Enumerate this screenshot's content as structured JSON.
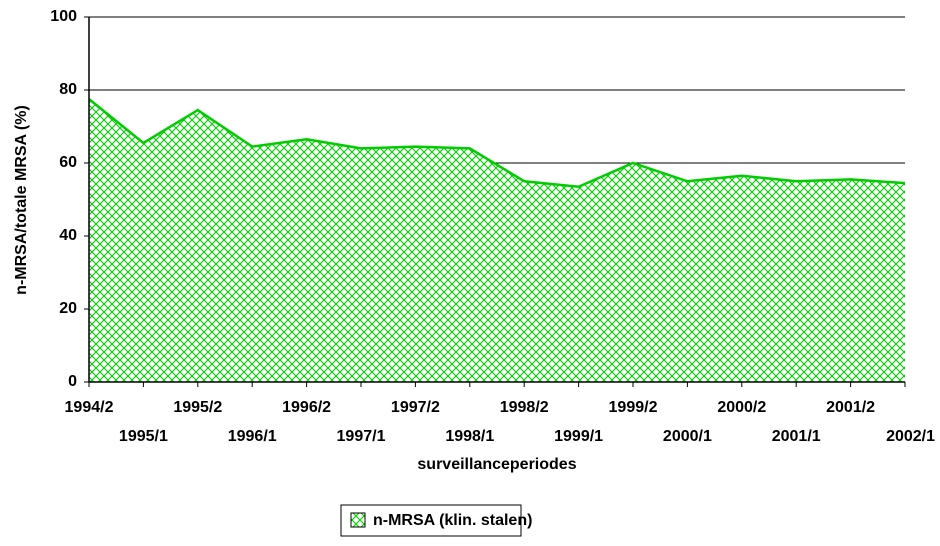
{
  "chart_data": {
    "type": "area",
    "x_label": "surveillanceperiodes",
    "y_label": "n-MRSA/totale MRSA (%)",
    "categories": [
      "1994/2",
      "1995/1",
      "1995/2",
      "1996/1",
      "1996/2",
      "1997/1",
      "1997/2",
      "1998/1",
      "1998/2",
      "1999/1",
      "1999/2",
      "2000/1",
      "2000/2",
      "2001/1",
      "2001/2",
      "2002/1"
    ],
    "series": [
      {
        "name": "n-MRSA (klin. stalen)",
        "color": "#00cc00",
        "values": [
          77.5,
          65.5,
          74.5,
          64.5,
          66.5,
          64,
          64.5,
          64,
          55,
          53.5,
          60,
          55,
          56.5,
          55,
          55.5,
          54.5
        ]
      }
    ],
    "ylim": [
      0,
      100
    ],
    "yticks": [
      0,
      20,
      40,
      60,
      80,
      100
    ],
    "grid": true,
    "legend": "bottom"
  }
}
